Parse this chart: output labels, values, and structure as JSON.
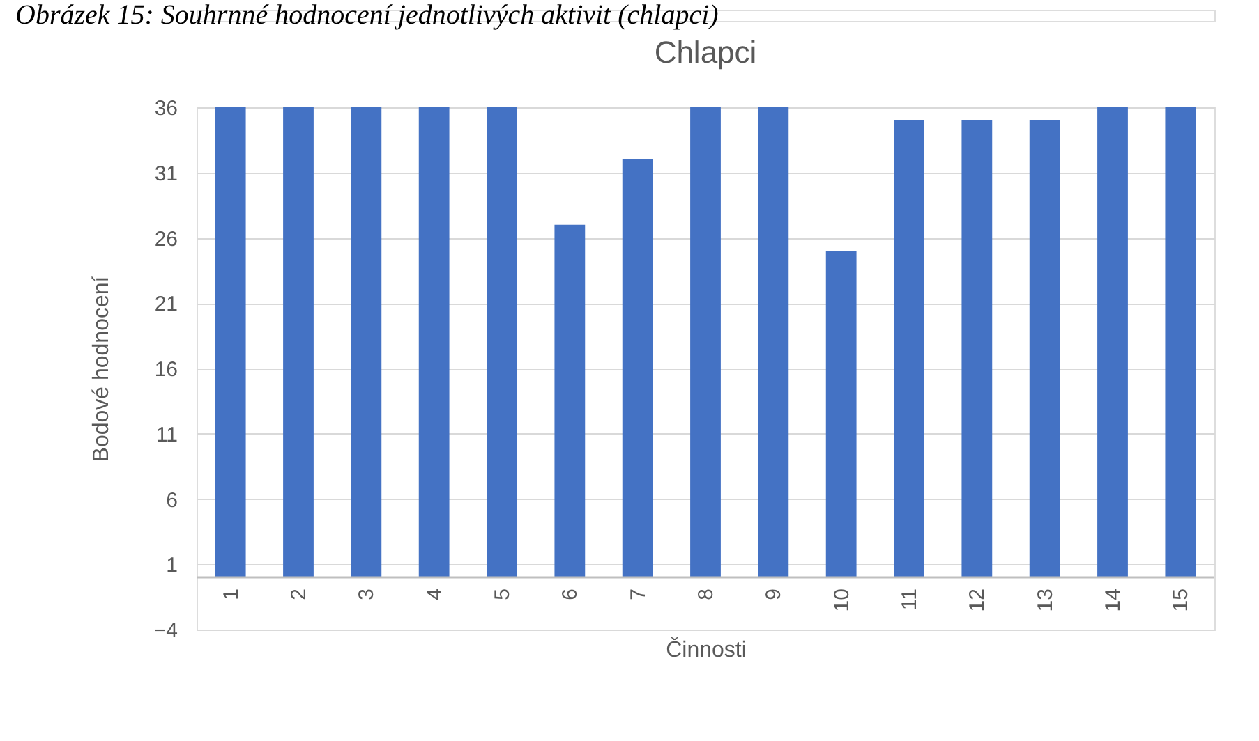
{
  "chart_data": {
    "type": "bar",
    "title": "Chlapci",
    "xlabel": "Činnosti",
    "ylabel": "Bodové hodnocení",
    "annotations": [
      "Obrázek 15: Souhrnné hodnocení jednotlivých aktivit (chlapci)"
    ],
    "categories": [
      "1",
      "2",
      "3",
      "4",
      "5",
      "6",
      "7",
      "8",
      "9",
      "10",
      "11",
      "12",
      "13",
      "14",
      "15"
    ],
    "values": [
      36,
      36,
      36,
      36,
      36,
      27,
      32,
      36,
      36,
      25,
      35,
      35,
      35,
      36,
      36
    ],
    "color": "#4472c4",
    "ylim": [
      -4,
      36
    ],
    "yticks": [
      -4,
      1,
      6,
      11,
      16,
      21,
      26,
      31,
      36
    ],
    "grid": "y"
  }
}
